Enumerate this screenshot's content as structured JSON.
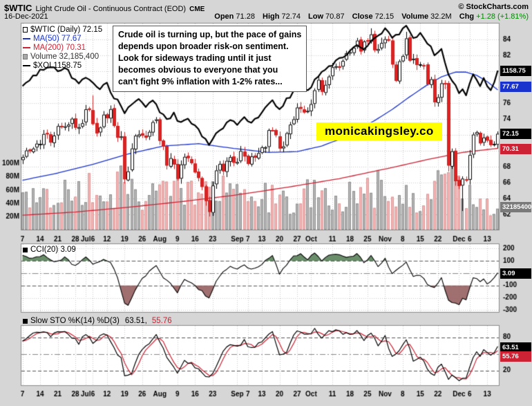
{
  "header": {
    "symbol": "$WTIC",
    "name": "Light Crude Oil - Continuous Contract (EOD)",
    "exchange": "CME",
    "copyright": "© StockCharts.com",
    "date": "16-Dec-2021",
    "quote": {
      "open_label": "Open",
      "open_value": "71.28",
      "high_label": "High",
      "high_value": "72.74",
      "low_label": "Low",
      "low_value": "70.87",
      "close_label": "Close",
      "close_value": "72.15",
      "volume_label": "Volume",
      "volume_value": "32.2M",
      "chg_label": "Chg",
      "chg_value": "+1.28 (+1.81%)"
    }
  },
  "legend": {
    "wtic": "$WTIC (Daily) 72.15",
    "ma50": "MA(50) 77.67",
    "ma200": "MA(200) 70.31",
    "volume": "Volume 32,185,400",
    "xoi": "$XOI 1158.75"
  },
  "annotation": {
    "lines": [
      "Crude oil is turning up, but the pace of gains",
      "depends upon broader risk-on sentiment.",
      "Look for sideways trading until it just",
      "becomes obvious to everyone that you",
      "can't fight 9% inflation with 1-2% rates..."
    ]
  },
  "watermark": "monicakingsley.co",
  "axis_boxes": {
    "xoi": "1158.75",
    "ma50": "77.67",
    "last": "72.15",
    "ma200": "70.31",
    "volume": "32185400",
    "cci": "3.09",
    "sto_k": "63.51",
    "sto_d": "55.76"
  },
  "cci_panel": {
    "legend": "CCI(20) 3.09"
  },
  "sto_panel": {
    "legend": "Slow STO %K(14) %D(3)",
    "k_text": "63.51,",
    "d_text": "55.76"
  },
  "colors": {
    "up": "#000000",
    "down": "#cc2222",
    "down_fill": "#dd2222",
    "ma50": "#1a33cc",
    "ma200": "#cc2233",
    "xoi": "#000000",
    "vol_up": "#b5b5b5",
    "vol_up_edge": "#8f8f8f",
    "vol_down": "#f3b3b3",
    "vol_down_edge": "#dd9999",
    "grid": "#c8c8c8",
    "panel_border": "#8a8a8a",
    "bg": "#d6d6d6",
    "chg_green": "#008800",
    "watermark_bg": "#ffff00",
    "cci_fill_pos": "rgba(90,130,90,0.9)",
    "cci_fill_neg": "rgba(150,95,95,0.9)",
    "sto_k": "#000000",
    "sto_d": "#cc2233"
  },
  "chart_data": {
    "type": "candlestick",
    "title": "$WTIC Light Crude Oil - Continuous Contract (EOD) CME",
    "date_range": "07-Jun-2021 to 16-Dec-2021",
    "price_axis_ticks": [
      84,
      82,
      80,
      78,
      76,
      74,
      72,
      70,
      68,
      66,
      64,
      62
    ],
    "price_axis_range": [
      60.0,
      86.1
    ],
    "volume_axis_ticks": [
      "100M",
      "80M",
      "60M",
      "40M",
      "20M"
    ],
    "x_ticks": [
      [
        0,
        "7"
      ],
      [
        5,
        "14"
      ],
      [
        10,
        "21"
      ],
      [
        15,
        "28"
      ],
      [
        18,
        "Jul"
      ],
      [
        20,
        "6"
      ],
      [
        24,
        "12"
      ],
      [
        29,
        "19"
      ],
      [
        34,
        "26"
      ],
      [
        39,
        "Aug"
      ],
      [
        44,
        "9"
      ],
      [
        49,
        "16"
      ],
      [
        54,
        "23"
      ],
      [
        61,
        "Sep"
      ],
      [
        64,
        "7"
      ],
      [
        68,
        "13"
      ],
      [
        73,
        "20"
      ],
      [
        78,
        "27"
      ],
      [
        82,
        "Oct"
      ],
      [
        88,
        "11"
      ],
      [
        93,
        "18"
      ],
      [
        98,
        "25"
      ],
      [
        103,
        "Nov"
      ],
      [
        108,
        "8"
      ],
      [
        113,
        "15"
      ],
      [
        118,
        "22"
      ],
      [
        124,
        "Dec"
      ],
      [
        127,
        "6"
      ],
      [
        132,
        "13"
      ]
    ],
    "close": [
      69.23,
      70.05,
      69.96,
      70.29,
      70.91,
      70.88,
      72.12,
      72.15,
      71.04,
      71.92,
      73.12,
      73.06,
      73.08,
      73.3,
      74.05,
      72.91,
      72.98,
      73.47,
      75.23,
      75.16,
      73.37,
      72.2,
      72.94,
      74.56,
      74.1,
      75.25,
      73.13,
      71.65,
      71.81,
      66.42,
      67.42,
      70.3,
      71.91,
      72.07,
      71.91,
      71.65,
      72.39,
      73.62,
      73.95,
      71.26,
      70.56,
      68.15,
      69.09,
      68.28,
      66.48,
      68.29,
      69.25,
      69.09,
      68.44,
      67.29,
      66.59,
      65.46,
      63.69,
      62.32,
      65.64,
      67.54,
      68.36,
      67.42,
      68.74,
      69.21,
      68.5,
      68.59,
      69.99,
      69.29,
      68.35,
      69.3,
      69.14,
      69.72,
      70.45,
      70.46,
      72.61,
      72.61,
      71.97,
      70.29,
      70.56,
      72.23,
      73.3,
      73.98,
      75.45,
      75.29,
      74.83,
      75.03,
      75.88,
      77.62,
      78.93,
      77.43,
      78.3,
      79.35,
      80.52,
      80.64,
      80.44,
      81.31,
      82.28,
      82.44,
      82.96,
      83.87,
      82.5,
      83.76,
      83.76,
      84.65,
      82.66,
      82.81,
      83.57,
      84.05,
      83.91,
      80.86,
      78.81,
      81.27,
      81.93,
      84.15,
      81.34,
      81.59,
      80.79,
      80.88,
      80.76,
      78.36,
      79.01,
      76.1,
      76.75,
      78.5,
      78.39,
      68.15,
      69.95,
      66.18,
      65.57,
      66.5,
      66.26,
      69.49,
      72.05,
      72.36,
      70.94,
      71.67,
      71.29,
      70.73,
      70.87,
      72.15
    ],
    "high_overrides": {
      "20": 76.98,
      "99": 85.41,
      "109": 84.97
    },
    "low_overrides": {
      "53": 61.74,
      "121": 67.4,
      "125": 62.43
    },
    "last_values": {
      "close": 72.15,
      "ma50": 77.67,
      "ma200": 70.31,
      "xoi": 1158.75,
      "volume": 32185400,
      "cci": 3.09,
      "sto_k": 63.51,
      "sto_d": 55.76
    },
    "ma50_anchors": [
      [
        0,
        66.3
      ],
      [
        10,
        67.2
      ],
      [
        20,
        68.3
      ],
      [
        30,
        69.6
      ],
      [
        40,
        70.6
      ],
      [
        50,
        70.9
      ],
      [
        60,
        70.3
      ],
      [
        70,
        69.8
      ],
      [
        78,
        69.9
      ],
      [
        85,
        70.6
      ],
      [
        92,
        71.8
      ],
      [
        100,
        73.8
      ],
      [
        105,
        75.2
      ],
      [
        110,
        76.8
      ],
      [
        115,
        78.3
      ],
      [
        119,
        79.3
      ],
      [
        123,
        79.9
      ],
      [
        126,
        79.9
      ],
      [
        129,
        79.5
      ],
      [
        132,
        78.7
      ],
      [
        135,
        77.67
      ]
    ],
    "ma200_anchors": [
      [
        0,
        61.9
      ],
      [
        15,
        62.3
      ],
      [
        30,
        62.9
      ],
      [
        45,
        63.6
      ],
      [
        60,
        64.4
      ],
      [
        75,
        65.4
      ],
      [
        90,
        66.5
      ],
      [
        105,
        67.9
      ],
      [
        115,
        68.9
      ],
      [
        125,
        69.8
      ],
      [
        135,
        70.31
      ]
    ],
    "xoi_scaled_anchors": [
      [
        0,
        78.2
      ],
      [
        2,
        79.0
      ],
      [
        5,
        80.0
      ],
      [
        8,
        80.6
      ],
      [
        10,
        80.0
      ],
      [
        12,
        80.5
      ],
      [
        14,
        79.4
      ],
      [
        16,
        78.4
      ],
      [
        18,
        79.2
      ],
      [
        20,
        78.8
      ],
      [
        22,
        77.8
      ],
      [
        24,
        78.4
      ],
      [
        26,
        76.8
      ],
      [
        28,
        75.8
      ],
      [
        29,
        74.6
      ],
      [
        31,
        75.8
      ],
      [
        33,
        76.6
      ],
      [
        35,
        75.6
      ],
      [
        37,
        76.2
      ],
      [
        39,
        75.0
      ],
      [
        41,
        74.0
      ],
      [
        43,
        74.6
      ],
      [
        45,
        73.4
      ],
      [
        47,
        74.2
      ],
      [
        49,
        73.0
      ],
      [
        51,
        72.0
      ],
      [
        53,
        70.6
      ],
      [
        55,
        72.2
      ],
      [
        57,
        73.0
      ],
      [
        59,
        74.0
      ],
      [
        61,
        73.4
      ],
      [
        63,
        74.2
      ],
      [
        65,
        73.6
      ],
      [
        67,
        74.4
      ],
      [
        69,
        75.4
      ],
      [
        71,
        76.2
      ],
      [
        73,
        75.2
      ],
      [
        75,
        76.4
      ],
      [
        77,
        77.4
      ],
      [
        79,
        78.2
      ],
      [
        81,
        77.6
      ],
      [
        83,
        78.8
      ],
      [
        85,
        79.8
      ],
      [
        87,
        80.6
      ],
      [
        89,
        81.2
      ],
      [
        91,
        81.8
      ],
      [
        93,
        82.6
      ],
      [
        95,
        83.4
      ],
      [
        97,
        82.8
      ],
      [
        99,
        84.0
      ],
      [
        101,
        84.6
      ],
      [
        103,
        85.2
      ],
      [
        105,
        84.2
      ],
      [
        107,
        84.8
      ],
      [
        109,
        85.6
      ],
      [
        111,
        84.2
      ],
      [
        113,
        84.8
      ],
      [
        115,
        83.6
      ],
      [
        117,
        82.2
      ],
      [
        119,
        83.0
      ],
      [
        121,
        79.6
      ],
      [
        123,
        78.2
      ],
      [
        124,
        77.2
      ],
      [
        125,
        78.0
      ],
      [
        126,
        77.0
      ],
      [
        127,
        78.6
      ],
      [
        128,
        79.6
      ],
      [
        129,
        79.0
      ],
      [
        130,
        78.2
      ],
      [
        131,
        79.0
      ],
      [
        132,
        78.0
      ],
      [
        133,
        77.6
      ],
      [
        134,
        78.4
      ],
      [
        135,
        80.1
      ]
    ],
    "volume_anchors_millions": [
      [
        0,
        40
      ],
      [
        5,
        45
      ],
      [
        10,
        55
      ],
      [
        15,
        50
      ],
      [
        20,
        62
      ],
      [
        25,
        45
      ],
      [
        29,
        85
      ],
      [
        30,
        95
      ],
      [
        33,
        60
      ],
      [
        38,
        45
      ],
      [
        41,
        55
      ],
      [
        44,
        65
      ],
      [
        48,
        50
      ],
      [
        53,
        75
      ],
      [
        54,
        80
      ],
      [
        58,
        50
      ],
      [
        62,
        45
      ],
      [
        66,
        40
      ],
      [
        70,
        50
      ],
      [
        75,
        45
      ],
      [
        80,
        55
      ],
      [
        85,
        50
      ],
      [
        90,
        45
      ],
      [
        95,
        55
      ],
      [
        99,
        65
      ],
      [
        103,
        55
      ],
      [
        107,
        50
      ],
      [
        109,
        60
      ],
      [
        113,
        45
      ],
      [
        117,
        55
      ],
      [
        121,
        85
      ],
      [
        123,
        70
      ],
      [
        125,
        65
      ],
      [
        127,
        60
      ],
      [
        129,
        55
      ],
      [
        131,
        45
      ],
      [
        133,
        40
      ],
      [
        135,
        32.2
      ]
    ],
    "cci": {
      "ticks": [
        200,
        100,
        0,
        -100,
        -200,
        -300
      ],
      "anchors": [
        [
          0,
          140
        ],
        [
          3,
          115
        ],
        [
          6,
          150
        ],
        [
          9,
          90
        ],
        [
          12,
          125
        ],
        [
          15,
          55
        ],
        [
          18,
          135
        ],
        [
          20,
          75
        ],
        [
          23,
          110
        ],
        [
          25,
          90
        ],
        [
          27,
          -30
        ],
        [
          29,
          -250
        ],
        [
          30,
          -270
        ],
        [
          32,
          -130
        ],
        [
          34,
          -50
        ],
        [
          36,
          15
        ],
        [
          38,
          65
        ],
        [
          40,
          -35
        ],
        [
          42,
          -90
        ],
        [
          44,
          -160
        ],
        [
          46,
          -55
        ],
        [
          48,
          -85
        ],
        [
          51,
          -150
        ],
        [
          53,
          -205
        ],
        [
          55,
          -70
        ],
        [
          57,
          5
        ],
        [
          59,
          55
        ],
        [
          61,
          40
        ],
        [
          63,
          65
        ],
        [
          65,
          25
        ],
        [
          67,
          45
        ],
        [
          69,
          95
        ],
        [
          71,
          135
        ],
        [
          73,
          -5
        ],
        [
          75,
          60
        ],
        [
          77,
          135
        ],
        [
          79,
          155
        ],
        [
          81,
          115
        ],
        [
          83,
          165
        ],
        [
          85,
          105
        ],
        [
          87,
          145
        ],
        [
          89,
          155
        ],
        [
          91,
          135
        ],
        [
          93,
          125
        ],
        [
          95,
          155
        ],
        [
          97,
          85
        ],
        [
          99,
          135
        ],
        [
          101,
          55
        ],
        [
          103,
          115
        ],
        [
          105,
          -10
        ],
        [
          107,
          35
        ],
        [
          109,
          95
        ],
        [
          111,
          -35
        ],
        [
          113,
          -15
        ],
        [
          115,
          -85
        ],
        [
          117,
          -125
        ],
        [
          119,
          -35
        ],
        [
          121,
          -225
        ],
        [
          123,
          -235
        ],
        [
          124,
          -255
        ],
        [
          125,
          -205
        ],
        [
          126,
          -225
        ],
        [
          127,
          -115
        ],
        [
          128,
          -45
        ],
        [
          129,
          -35
        ],
        [
          130,
          -75
        ],
        [
          131,
          -50
        ],
        [
          132,
          -95
        ],
        [
          133,
          -70
        ],
        [
          134,
          -30
        ],
        [
          135,
          3.09
        ]
      ]
    },
    "sto": {
      "ticks": [
        80,
        50,
        20
      ],
      "k_anchors": [
        [
          0,
          72
        ],
        [
          2,
          82
        ],
        [
          4,
          90
        ],
        [
          6,
          93
        ],
        [
          8,
          82
        ],
        [
          10,
          90
        ],
        [
          12,
          88
        ],
        [
          14,
          80
        ],
        [
          16,
          70
        ],
        [
          18,
          88
        ],
        [
          20,
          72
        ],
        [
          22,
          80
        ],
        [
          24,
          86
        ],
        [
          26,
          60
        ],
        [
          28,
          42
        ],
        [
          29,
          10
        ],
        [
          31,
          14
        ],
        [
          33,
          50
        ],
        [
          35,
          62
        ],
        [
          37,
          76
        ],
        [
          38,
          82
        ],
        [
          40,
          58
        ],
        [
          42,
          34
        ],
        [
          44,
          15
        ],
        [
          46,
          38
        ],
        [
          48,
          34
        ],
        [
          50,
          22
        ],
        [
          52,
          8
        ],
        [
          53,
          5
        ],
        [
          55,
          28
        ],
        [
          57,
          52
        ],
        [
          59,
          68
        ],
        [
          61,
          62
        ],
        [
          63,
          74
        ],
        [
          65,
          58
        ],
        [
          67,
          68
        ],
        [
          69,
          80
        ],
        [
          71,
          90
        ],
        [
          73,
          48
        ],
        [
          75,
          56
        ],
        [
          77,
          84
        ],
        [
          79,
          93
        ],
        [
          81,
          84
        ],
        [
          83,
          93
        ],
        [
          85,
          78
        ],
        [
          87,
          90
        ],
        [
          89,
          93
        ],
        [
          91,
          88
        ],
        [
          93,
          84
        ],
        [
          95,
          92
        ],
        [
          97,
          72
        ],
        [
          99,
          90
        ],
        [
          101,
          62
        ],
        [
          103,
          80
        ],
        [
          105,
          42
        ],
        [
          107,
          56
        ],
        [
          109,
          78
        ],
        [
          111,
          38
        ],
        [
          113,
          46
        ],
        [
          115,
          24
        ],
        [
          117,
          12
        ],
        [
          119,
          34
        ],
        [
          121,
          6
        ],
        [
          122,
          12
        ],
        [
          123,
          5
        ],
        [
          124,
          3
        ],
        [
          125,
          8
        ],
        [
          126,
          7
        ],
        [
          127,
          22
        ],
        [
          128,
          42
        ],
        [
          129,
          56
        ],
        [
          130,
          48
        ],
        [
          131,
          58
        ],
        [
          132,
          50
        ],
        [
          133,
          45
        ],
        [
          134,
          52
        ],
        [
          135,
          63.51
        ]
      ]
    }
  }
}
